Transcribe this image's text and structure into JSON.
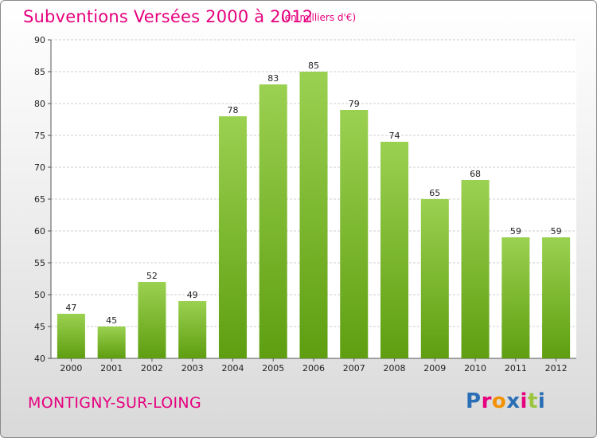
{
  "header": {
    "title": "Subventions Versées 2000 à 2012",
    "subtitle": "(en milliers d'€)"
  },
  "footer": {
    "city": "MONTIGNY-SUR-LOING",
    "logo_text": "Proxiti"
  },
  "colors": {
    "title": "#e6007e",
    "bar_top": "#9bd151",
    "bar_bottom": "#5e9e10",
    "grid": "#cfcfcf",
    "logo_letters": [
      "#2a6fb5",
      "#e6007e",
      "#f39200",
      "#2a6fb5",
      "#e6007e",
      "#9bc53d",
      "#2a6fb5"
    ]
  },
  "chart_data": {
    "type": "bar",
    "title": "Subventions Versées 2000 à 2012",
    "subtitle": "(en milliers d'€)",
    "categories": [
      "2000",
      "2001",
      "2002",
      "2003",
      "2004",
      "2005",
      "2006",
      "2007",
      "2008",
      "2009",
      "2010",
      "2011",
      "2012"
    ],
    "values": [
      47,
      45,
      52,
      49,
      78,
      83,
      85,
      79,
      74,
      65,
      68,
      59,
      59
    ],
    "ylim": [
      40,
      90
    ],
    "yticks": [
      40,
      45,
      50,
      55,
      60,
      65,
      70,
      75,
      80,
      85,
      90
    ],
    "grid": true,
    "data_labels": true
  }
}
